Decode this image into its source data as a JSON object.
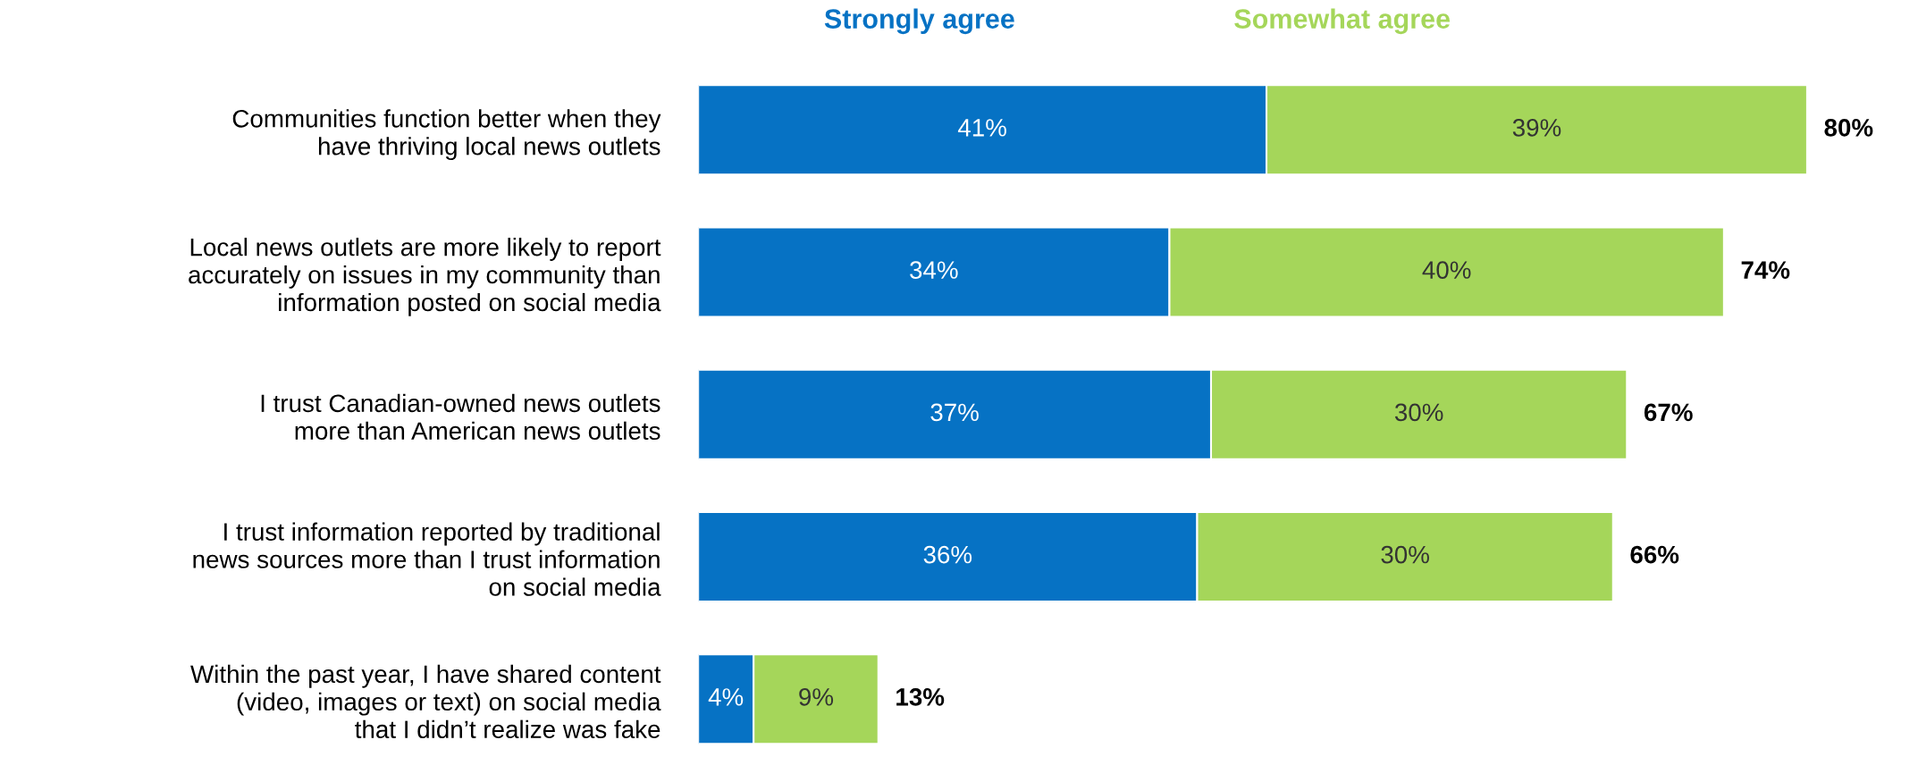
{
  "chart_data": {
    "type": "bar",
    "orientation": "horizontal",
    "stacked": true,
    "legend": "top",
    "categories": [
      "Communities function better when they\nhave thriving local news outlets",
      "Local news outlets are more likely to report\naccurately on issues in my community than\ninformation posted on social media",
      "I trust Canadian-owned news outlets\nmore than American news outlets",
      "I trust information reported by traditional\nnews sources more than I trust information\non social media",
      "Within the past year, I have shared content\n(video, images or text) on social media\nthat I didn’t realize was fake"
    ],
    "series": [
      {
        "name": "Strongly agree",
        "color": "#0672c4",
        "values": [
          41,
          34,
          37,
          36,
          4
        ],
        "value_labels": [
          "41%",
          "34%",
          "37%",
          "36%",
          "4%"
        ]
      },
      {
        "name": "Somewhat agree",
        "color": "#a5d65a",
        "values": [
          39,
          40,
          30,
          30,
          9
        ],
        "value_labels": [
          "39%",
          "40%",
          "30%",
          "30%",
          "9%"
        ]
      }
    ],
    "totals": [
      "80%",
      "74%",
      "67%",
      "66%",
      "13%"
    ]
  }
}
